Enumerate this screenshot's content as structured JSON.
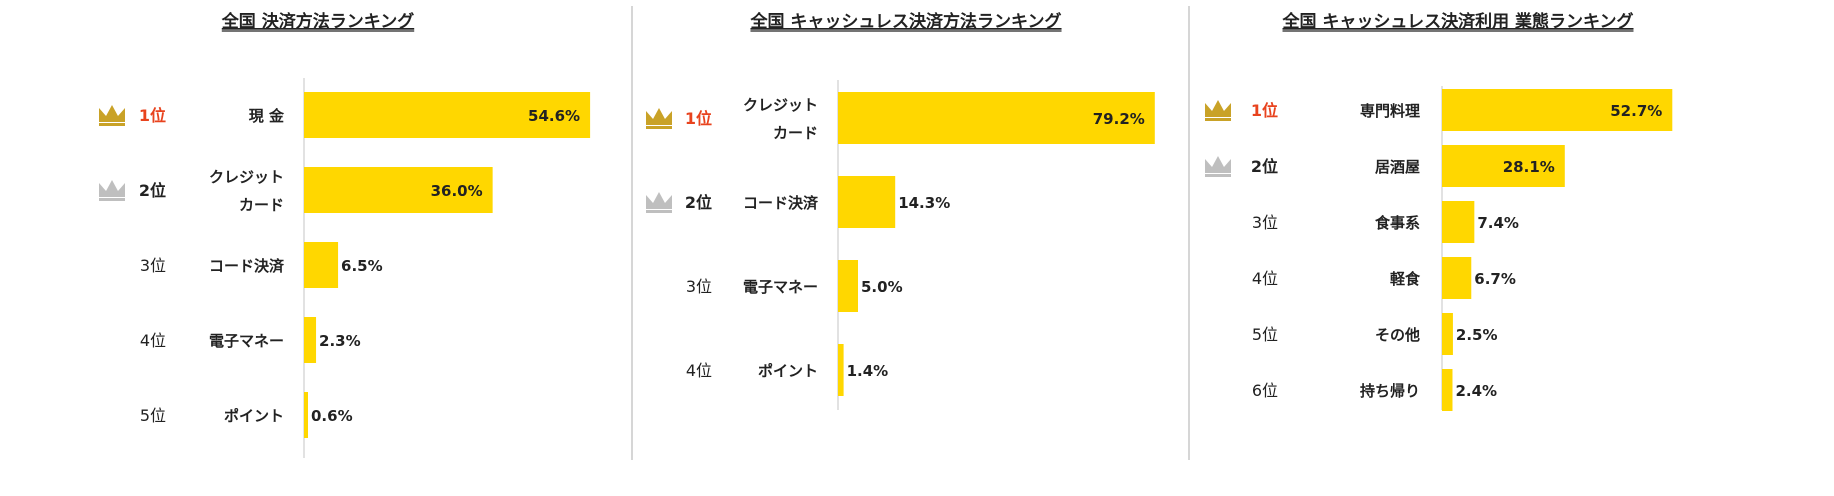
{
  "chart_data": [
    {
      "type": "bar",
      "orientation": "horizontal",
      "title": "全国 決済方法ランキング",
      "ranks": [
        "1位",
        "2位",
        "3位",
        "4位",
        "5位"
      ],
      "categories": [
        "現 金",
        "クレジット\nカード",
        "コード決済",
        "電子マネー",
        "ポイント"
      ],
      "values": [
        54.6,
        36.0,
        6.5,
        2.3,
        0.6
      ],
      "value_labels": [
        "54.6%",
        "36.0%",
        "6.5%",
        "2.3%",
        "0.6%"
      ],
      "xlim": [
        0,
        90
      ],
      "crowns": [
        "gold-crown-icon",
        "silver-crown-icon",
        null,
        null,
        null
      ]
    },
    {
      "type": "bar",
      "orientation": "horizontal",
      "title": "全国 キャッシュレス決済方法ランキング",
      "ranks": [
        "1位",
        "2位",
        "3位",
        "4位"
      ],
      "categories": [
        "クレジット\nカード",
        "コード決済",
        "電子マネー",
        "ポイント"
      ],
      "values": [
        79.2,
        14.3,
        5.0,
        1.4
      ],
      "value_labels": [
        "79.2%",
        "14.3%",
        "5.0%",
        "1.4%"
      ],
      "xlim": [
        0,
        90
      ],
      "crowns": [
        "gold-crown-icon",
        "silver-crown-icon",
        null,
        null
      ]
    },
    {
      "type": "bar",
      "orientation": "horizontal",
      "title": "全国 キャッシュレス決済利用 業態ランキング",
      "ranks": [
        "1位",
        "2位",
        "3位",
        "4位",
        "5位",
        "6位"
      ],
      "categories": [
        "専門料理",
        "居酒屋",
        "食事系",
        "軽食",
        "その他",
        "持ち帰り"
      ],
      "values": [
        52.7,
        28.1,
        7.4,
        6.7,
        2.5,
        2.4
      ],
      "value_labels": [
        "52.7%",
        "28.1%",
        "7.4%",
        "6.7%",
        "2.5%",
        "2.4%"
      ],
      "xlim": [
        0,
        90
      ],
      "crowns": [
        "gold-crown-icon",
        "silver-crown-icon",
        null,
        null,
        null,
        null
      ]
    }
  ],
  "colors": {
    "bar": "#FFD700",
    "rank_first": "#E8431E",
    "rank_second": "#222222",
    "rank_other": "#222222",
    "crown_gold": "#C9A227",
    "crown_silver": "#BFBFBF",
    "axis": "#D9D9D9",
    "divider": "#C8C8C8",
    "text": "#222222"
  }
}
